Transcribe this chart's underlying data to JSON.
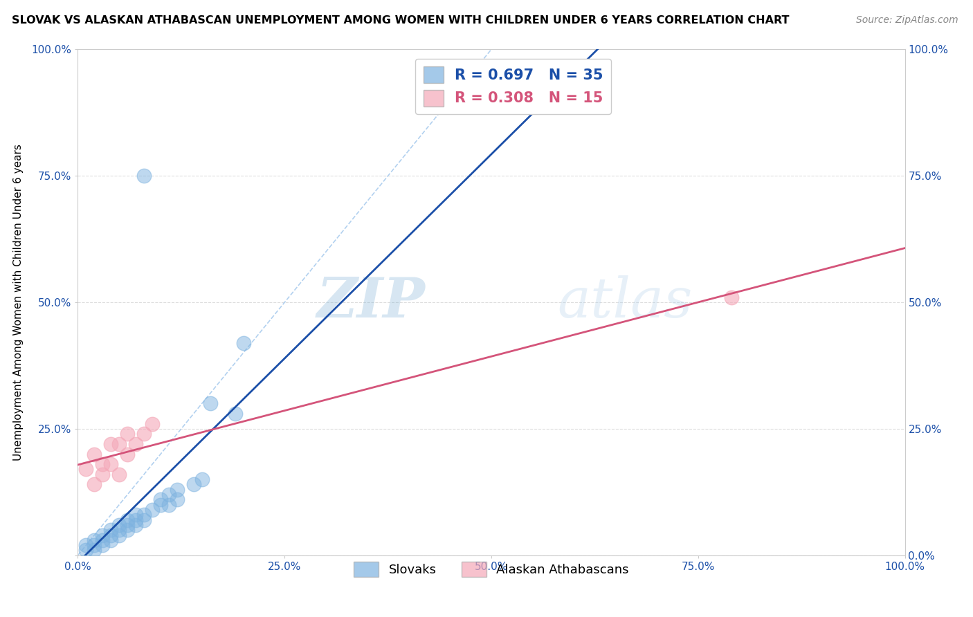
{
  "title": "SLOVAK VS ALASKAN ATHABASCAN UNEMPLOYMENT AMONG WOMEN WITH CHILDREN UNDER 6 YEARS CORRELATION CHART",
  "source": "Source: ZipAtlas.com",
  "ylabel": "Unemployment Among Women with Children Under 6 years",
  "xlim": [
    0.0,
    1.0
  ],
  "ylim": [
    0.0,
    1.0
  ],
  "xticks": [
    0.0,
    0.25,
    0.5,
    0.75,
    1.0
  ],
  "yticks": [
    0.0,
    0.25,
    0.5,
    0.75,
    1.0
  ],
  "x_tick_labels": [
    "0.0%",
    "25.0%",
    "50.0%",
    "75.0%",
    "100.0%"
  ],
  "y_tick_labels": [
    "",
    "25.0%",
    "50.0%",
    "75.0%",
    "100.0%"
  ],
  "right_tick_labels": [
    "0.0%",
    "25.0%",
    "50.0%",
    "75.0%",
    "100.0%"
  ],
  "slovak_color": "#7EB3E0",
  "athabascan_color": "#F4A8B8",
  "slovak_R": 0.697,
  "slovak_N": 35,
  "athabascan_R": 0.308,
  "athabascan_N": 15,
  "legend_labels": [
    "Slovaks",
    "Alaskan Athabascans"
  ],
  "watermark_zip": "ZIP",
  "watermark_atlas": "atlas",
  "background_color": "#ffffff",
  "slovak_scatter": [
    [
      0.01,
      0.01
    ],
    [
      0.01,
      0.02
    ],
    [
      0.02,
      0.01
    ],
    [
      0.02,
      0.02
    ],
    [
      0.02,
      0.03
    ],
    [
      0.03,
      0.02
    ],
    [
      0.03,
      0.03
    ],
    [
      0.03,
      0.04
    ],
    [
      0.04,
      0.03
    ],
    [
      0.04,
      0.04
    ],
    [
      0.04,
      0.05
    ],
    [
      0.05,
      0.04
    ],
    [
      0.05,
      0.05
    ],
    [
      0.05,
      0.06
    ],
    [
      0.06,
      0.05
    ],
    [
      0.06,
      0.06
    ],
    [
      0.06,
      0.07
    ],
    [
      0.07,
      0.06
    ],
    [
      0.07,
      0.07
    ],
    [
      0.07,
      0.08
    ],
    [
      0.08,
      0.07
    ],
    [
      0.08,
      0.08
    ],
    [
      0.09,
      0.09
    ],
    [
      0.1,
      0.1
    ],
    [
      0.1,
      0.11
    ],
    [
      0.11,
      0.1
    ],
    [
      0.11,
      0.12
    ],
    [
      0.12,
      0.11
    ],
    [
      0.12,
      0.13
    ],
    [
      0.14,
      0.14
    ],
    [
      0.15,
      0.15
    ],
    [
      0.16,
      0.3
    ],
    [
      0.2,
      0.42
    ],
    [
      0.08,
      0.75
    ],
    [
      0.19,
      0.28
    ]
  ],
  "athabascan_scatter": [
    [
      0.02,
      0.14
    ],
    [
      0.03,
      0.18
    ],
    [
      0.04,
      0.18
    ],
    [
      0.05,
      0.16
    ],
    [
      0.05,
      0.22
    ],
    [
      0.06,
      0.2
    ],
    [
      0.07,
      0.22
    ],
    [
      0.08,
      0.24
    ],
    [
      0.09,
      0.26
    ],
    [
      0.02,
      0.2
    ],
    [
      0.03,
      0.16
    ],
    [
      0.01,
      0.17
    ],
    [
      0.79,
      0.51
    ],
    [
      0.04,
      0.22
    ],
    [
      0.06,
      0.24
    ]
  ],
  "slovak_line_color": "#1B4FA8",
  "athabascan_line_color": "#D4547A",
  "diag_line_color": "#AACCEE",
  "title_fontsize": 11.5,
  "axis_label_fontsize": 11,
  "tick_fontsize": 11,
  "legend_fontsize": 14,
  "source_fontsize": 10,
  "grid_color": "#DDDDDD"
}
